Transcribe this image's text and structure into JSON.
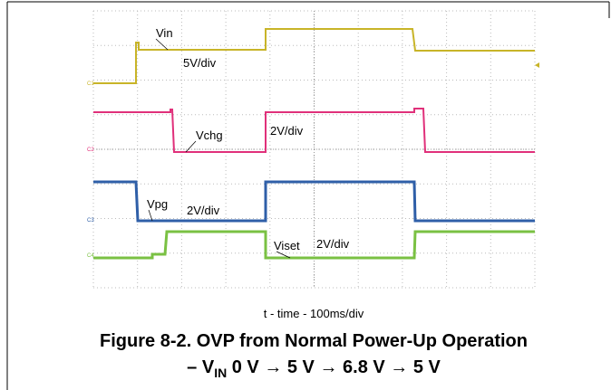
{
  "figure": {
    "trace_labels": [
      {
        "name": "Vin",
        "scale": "5V/div"
      },
      {
        "name": "Vchg",
        "scale": "2V/div"
      },
      {
        "name": "Vpg",
        "scale": "2V/div"
      },
      {
        "name": "Viset",
        "scale": "2V/div"
      }
    ],
    "channels": [
      "C1",
      "C2",
      "C3",
      "C4"
    ],
    "x_axis_label": "t - time - 100ms/div",
    "caption": {
      "line1": "Figure 8-2. OVP from Normal Power-Up Operation",
      "line2_prefix": "– V",
      "line2_sub": "IN",
      "line2_suffix": " 0 V → 5 V → 6.8 V → 5 V"
    }
  }
}
